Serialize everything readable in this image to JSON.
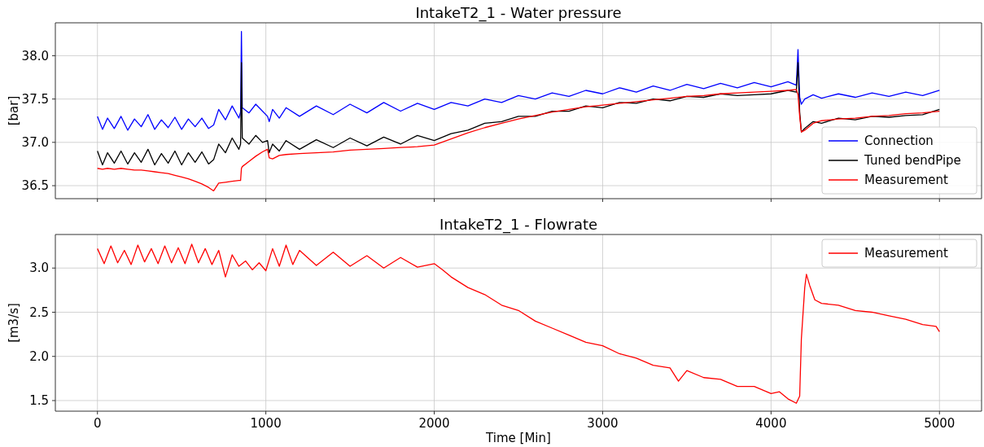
{
  "chart_data": [
    {
      "type": "line",
      "title": "IntakeT2_1 - Water pressure",
      "ylabel": "[bar]",
      "xlim": [
        -250,
        5250
      ],
      "xticks": [
        0,
        1000,
        2000,
        3000,
        4000,
        5000
      ],
      "ylim": [
        36.35,
        38.38
      ],
      "yticks": [
        {
          "value": 36.5,
          "label": "36.5"
        },
        {
          "value": 37,
          "label": "37.0"
        },
        {
          "value": 37.5,
          "label": "37.5"
        },
        {
          "value": 38,
          "label": "38.0"
        }
      ],
      "grid": true,
      "legend": "bottom right",
      "tick_labels": "y",
      "line_style": "solid",
      "marker": "none",
      "x": [
        0,
        30,
        60,
        100,
        140,
        180,
        220,
        260,
        300,
        340,
        380,
        420,
        460,
        500,
        540,
        580,
        620,
        660,
        690,
        720,
        760,
        800,
        840,
        850,
        855,
        860,
        900,
        940,
        980,
        1010,
        1020,
        1040,
        1080,
        1120,
        1200,
        1300,
        1400,
        1500,
        1600,
        1700,
        1800,
        1900,
        2000,
        2100,
        2200,
        2300,
        2400,
        2500,
        2600,
        2700,
        2800,
        2900,
        3000,
        3100,
        3200,
        3300,
        3400,
        3500,
        3600,
        3700,
        3800,
        3900,
        4000,
        4100,
        4150,
        4160,
        4170,
        4180,
        4200,
        4250,
        4300,
        4400,
        4500,
        4600,
        4700,
        4800,
        4900,
        5000
      ],
      "series": [
        {
          "name": "Connection",
          "color": "#0000ff",
          "values": [
            37.3,
            37.15,
            37.28,
            37.16,
            37.3,
            37.14,
            37.27,
            37.18,
            37.32,
            37.15,
            37.26,
            37.17,
            37.29,
            37.15,
            37.27,
            37.18,
            37.28,
            37.16,
            37.2,
            37.38,
            37.26,
            37.42,
            37.28,
            37.35,
            38.28,
            37.4,
            37.34,
            37.44,
            37.36,
            37.3,
            37.24,
            37.38,
            37.28,
            37.4,
            37.3,
            37.42,
            37.32,
            37.44,
            37.34,
            37.46,
            37.36,
            37.45,
            37.38,
            37.46,
            37.42,
            37.5,
            37.46,
            37.54,
            37.5,
            37.57,
            37.53,
            37.6,
            37.56,
            37.63,
            37.58,
            37.65,
            37.6,
            37.67,
            37.62,
            37.68,
            37.63,
            37.69,
            37.64,
            37.7,
            37.66,
            38.07,
            37.52,
            37.44,
            37.5,
            37.55,
            37.51,
            37.56,
            37.52,
            37.57,
            37.53,
            37.58,
            37.54,
            37.6
          ]
        },
        {
          "name": "Tuned bendPipe",
          "color": "#000000",
          "values": [
            36.9,
            36.74,
            36.88,
            36.76,
            36.9,
            36.75,
            36.88,
            36.77,
            36.92,
            36.74,
            36.87,
            36.76,
            36.9,
            36.74,
            36.88,
            36.77,
            36.89,
            36.75,
            36.8,
            36.98,
            36.88,
            37.05,
            36.92,
            36.98,
            37.92,
            37.05,
            36.98,
            37.08,
            37.0,
            37.02,
            36.88,
            36.98,
            36.9,
            37.02,
            36.92,
            37.03,
            36.94,
            37.05,
            36.96,
            37.06,
            36.98,
            37.08,
            37.02,
            37.1,
            37.14,
            37.22,
            37.24,
            37.3,
            37.3,
            37.36,
            37.36,
            37.42,
            37.4,
            37.46,
            37.45,
            37.5,
            37.48,
            37.53,
            37.52,
            37.56,
            37.54,
            37.55,
            37.56,
            37.6,
            37.58,
            37.92,
            37.35,
            37.12,
            37.16,
            37.24,
            37.22,
            37.28,
            37.26,
            37.3,
            37.29,
            37.31,
            37.32,
            37.38
          ]
        },
        {
          "name": "Measurement",
          "color": "#ff0000",
          "values": [
            36.7,
            36.69,
            36.7,
            36.69,
            36.7,
            36.69,
            36.68,
            36.68,
            36.67,
            36.66,
            36.65,
            36.64,
            36.62,
            36.6,
            36.58,
            36.55,
            36.52,
            36.48,
            36.44,
            36.53,
            36.54,
            36.55,
            36.56,
            36.56,
            36.7,
            36.72,
            36.78,
            36.84,
            36.89,
            36.92,
            36.82,
            36.81,
            36.85,
            36.86,
            36.87,
            36.88,
            36.89,
            36.91,
            36.92,
            36.93,
            36.94,
            36.95,
            36.97,
            37.04,
            37.11,
            37.17,
            37.22,
            37.27,
            37.31,
            37.35,
            37.38,
            37.41,
            37.43,
            37.45,
            37.47,
            37.49,
            37.51,
            37.53,
            37.54,
            37.56,
            37.57,
            37.58,
            37.59,
            37.6,
            37.61,
            37.55,
            37.3,
            37.12,
            37.14,
            37.22,
            37.25,
            37.27,
            37.28,
            37.3,
            37.31,
            37.33,
            37.34,
            37.36
          ]
        }
      ]
    },
    {
      "type": "line",
      "title": "IntakeT2_1 - Flowrate",
      "xlabel": "Time [Min]",
      "ylabel": "[m3/s]",
      "xlim": [
        -250,
        5250
      ],
      "xticks": [
        0,
        1000,
        2000,
        3000,
        4000,
        5000
      ],
      "ylim": [
        1.38,
        3.38
      ],
      "yticks": [
        {
          "value": 1.5,
          "label": "1.5"
        },
        {
          "value": 2,
          "label": "2.0"
        },
        {
          "value": 2.5,
          "label": "2.5"
        },
        {
          "value": 3,
          "label": "3.0"
        }
      ],
      "grid": true,
      "legend": "top right",
      "line_style": "solid",
      "marker": "none",
      "x": [
        0,
        40,
        80,
        120,
        160,
        200,
        240,
        280,
        320,
        360,
        400,
        440,
        480,
        520,
        560,
        600,
        640,
        680,
        720,
        760,
        800,
        840,
        880,
        920,
        960,
        1000,
        1040,
        1080,
        1120,
        1160,
        1200,
        1300,
        1400,
        1500,
        1600,
        1700,
        1800,
        1900,
        2000,
        2050,
        2100,
        2200,
        2300,
        2400,
        2500,
        2600,
        2700,
        2800,
        2900,
        3000,
        3100,
        3200,
        3300,
        3400,
        3450,
        3500,
        3600,
        3700,
        3800,
        3900,
        4000,
        4050,
        4100,
        4150,
        4170,
        4180,
        4200,
        4210,
        4230,
        4260,
        4300,
        4400,
        4500,
        4600,
        4700,
        4800,
        4900,
        4980,
        5000
      ],
      "series": [
        {
          "name": "Measurement",
          "color": "#ff0000",
          "values": [
            3.22,
            3.05,
            3.25,
            3.06,
            3.2,
            3.04,
            3.26,
            3.07,
            3.22,
            3.05,
            3.25,
            3.06,
            3.23,
            3.05,
            3.27,
            3.06,
            3.22,
            3.04,
            3.2,
            2.9,
            3.15,
            3.02,
            3.08,
            2.98,
            3.06,
            2.97,
            3.22,
            3.02,
            3.26,
            3.04,
            3.2,
            3.03,
            3.18,
            3.02,
            3.14,
            3.0,
            3.12,
            3.01,
            3.05,
            2.98,
            2.9,
            2.78,
            2.7,
            2.58,
            2.52,
            2.4,
            2.32,
            2.24,
            2.16,
            2.12,
            2.03,
            1.98,
            1.9,
            1.87,
            1.72,
            1.84,
            1.76,
            1.74,
            1.66,
            1.66,
            1.58,
            1.6,
            1.52,
            1.47,
            1.55,
            2.2,
            2.78,
            2.93,
            2.8,
            2.64,
            2.6,
            2.58,
            2.52,
            2.5,
            2.46,
            2.42,
            2.36,
            2.34,
            2.28
          ]
        }
      ]
    }
  ]
}
